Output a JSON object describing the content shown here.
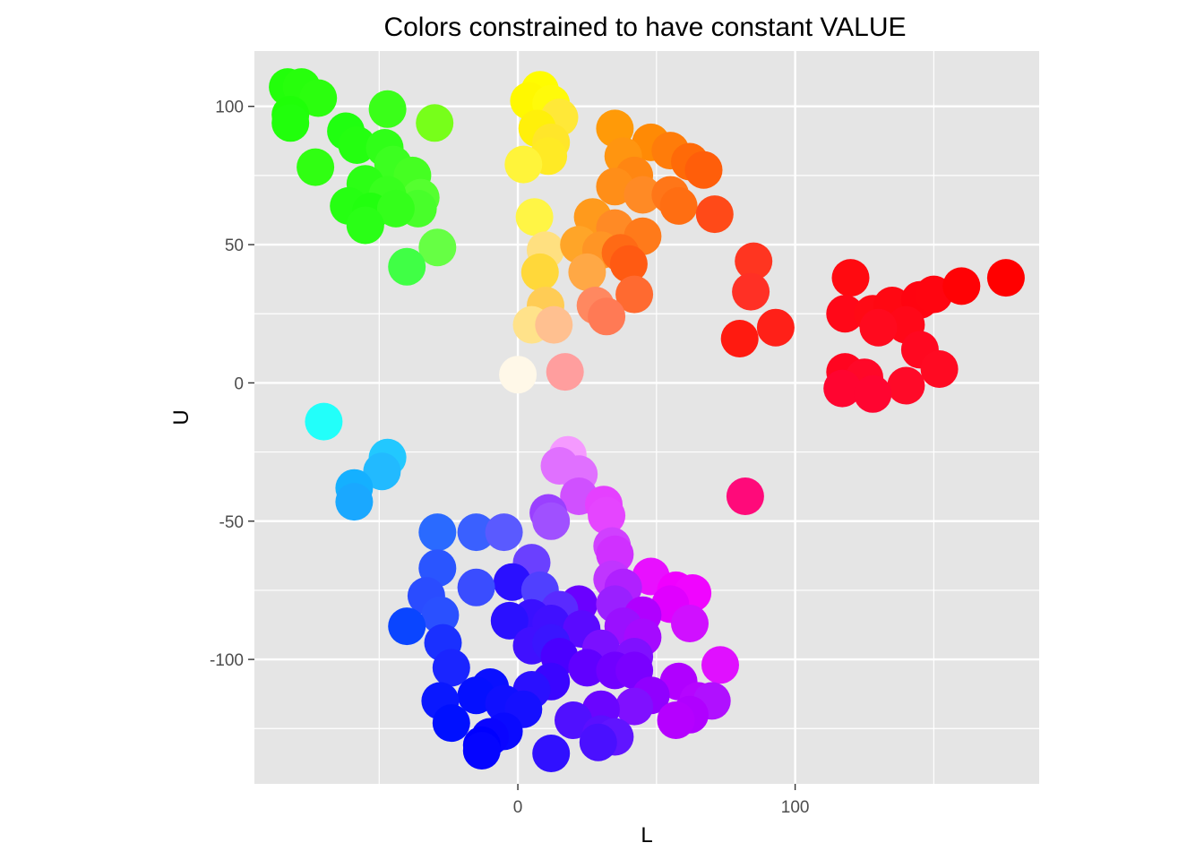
{
  "chart_data": {
    "type": "scatter",
    "title": "Colors constrained to have constant VALUE",
    "xlabel": "L",
    "ylabel": "U",
    "xlim": [
      -95,
      188
    ],
    "ylim": [
      -145,
      120
    ],
    "x_ticks": [
      0,
      100
    ],
    "y_ticks": [
      100,
      50,
      0,
      -50,
      -100
    ],
    "grid": true,
    "legend": "none",
    "panel_color": "#e5e5e5",
    "grid_color": "#ffffff",
    "points": [
      {
        "x": -83,
        "y": 107,
        "color": "#22ff0a"
      },
      {
        "x": -78,
        "y": 107,
        "color": "#27ff0c"
      },
      {
        "x": -72,
        "y": 103,
        "color": "#2bff0e"
      },
      {
        "x": -82,
        "y": 97,
        "color": "#1fff08"
      },
      {
        "x": -82,
        "y": 94,
        "color": "#21ff0c"
      },
      {
        "x": -47,
        "y": 99,
        "color": "#3aff19"
      },
      {
        "x": -30,
        "y": 94,
        "color": "#77ff1a"
      },
      {
        "x": -62,
        "y": 91,
        "color": "#20ff10"
      },
      {
        "x": -58,
        "y": 86,
        "color": "#24ff10"
      },
      {
        "x": -48,
        "y": 85,
        "color": "#30ff18"
      },
      {
        "x": -73,
        "y": 78,
        "color": "#30ff12"
      },
      {
        "x": -45,
        "y": 79,
        "color": "#3cff20"
      },
      {
        "x": -38,
        "y": 75,
        "color": "#45ff22"
      },
      {
        "x": -55,
        "y": 72,
        "color": "#2cff15"
      },
      {
        "x": -35,
        "y": 67,
        "color": "#55ff2f"
      },
      {
        "x": -47,
        "y": 68,
        "color": "#38ff1d"
      },
      {
        "x": -61,
        "y": 64,
        "color": "#26ff12"
      },
      {
        "x": -53,
        "y": 62,
        "color": "#22ff0f"
      },
      {
        "x": -36,
        "y": 63,
        "color": "#48ff2a"
      },
      {
        "x": -44,
        "y": 63,
        "color": "#34ff1b"
      },
      {
        "x": -55,
        "y": 57,
        "color": "#2aff16"
      },
      {
        "x": -29,
        "y": 49,
        "color": "#66ff44"
      },
      {
        "x": -40,
        "y": 42,
        "color": "#40ff45"
      },
      {
        "x": 8,
        "y": 106,
        "color": "#fffc00"
      },
      {
        "x": 4,
        "y": 102,
        "color": "#fff800"
      },
      {
        "x": 12,
        "y": 101,
        "color": "#fffa0a"
      },
      {
        "x": 15,
        "y": 96,
        "color": "#ffe838"
      },
      {
        "x": 7,
        "y": 92,
        "color": "#fff00a"
      },
      {
        "x": 12,
        "y": 87,
        "color": "#ffe62a"
      },
      {
        "x": 11,
        "y": 82,
        "color": "#ffea25"
      },
      {
        "x": 2,
        "y": 79,
        "color": "#fff43a"
      },
      {
        "x": 6,
        "y": 60,
        "color": "#fff545"
      },
      {
        "x": 10,
        "y": 48,
        "color": "#ffe080"
      },
      {
        "x": 8,
        "y": 40,
        "color": "#ffd83a"
      },
      {
        "x": 10,
        "y": 28,
        "color": "#ffcc55"
      },
      {
        "x": 5,
        "y": 21,
        "color": "#ffe28a"
      },
      {
        "x": 13,
        "y": 21,
        "color": "#ffc090"
      },
      {
        "x": 0,
        "y": 3,
        "color": "#fff8e8"
      },
      {
        "x": 17,
        "y": 4,
        "color": "#ff9e9e"
      },
      {
        "x": 35,
        "y": 92,
        "color": "#ff9a08"
      },
      {
        "x": 48,
        "y": 87,
        "color": "#ff8a05"
      },
      {
        "x": 55,
        "y": 84,
        "color": "#ff7c0a"
      },
      {
        "x": 38,
        "y": 82,
        "color": "#ff9510"
      },
      {
        "x": 62,
        "y": 80,
        "color": "#ff6a08"
      },
      {
        "x": 67,
        "y": 77,
        "color": "#ff5e0a"
      },
      {
        "x": 42,
        "y": 75,
        "color": "#ff8612"
      },
      {
        "x": 35,
        "y": 71,
        "color": "#ff8e18"
      },
      {
        "x": 45,
        "y": 68,
        "color": "#ff8a25"
      },
      {
        "x": 55,
        "y": 68,
        "color": "#ff7618"
      },
      {
        "x": 58,
        "y": 64,
        "color": "#ff6e12"
      },
      {
        "x": 71,
        "y": 61,
        "color": "#ff4a18"
      },
      {
        "x": 27,
        "y": 60,
        "color": "#ff9a1c"
      },
      {
        "x": 35,
        "y": 56,
        "color": "#ff8a25"
      },
      {
        "x": 45,
        "y": 53,
        "color": "#ff7a1a"
      },
      {
        "x": 22,
        "y": 50,
        "color": "#ffa528"
      },
      {
        "x": 30,
        "y": 48,
        "color": "#ff9525"
      },
      {
        "x": 37,
        "y": 47,
        "color": "#ff6a15"
      },
      {
        "x": 40,
        "y": 43,
        "color": "#ff5a12"
      },
      {
        "x": 25,
        "y": 40,
        "color": "#ffa845"
      },
      {
        "x": 42,
        "y": 32,
        "color": "#ff6a30"
      },
      {
        "x": 28,
        "y": 28,
        "color": "#ff8860"
      },
      {
        "x": 32,
        "y": 24,
        "color": "#ff7a55"
      },
      {
        "x": 85,
        "y": 44,
        "color": "#ff3520"
      },
      {
        "x": 84,
        "y": 33,
        "color": "#ff3025"
      },
      {
        "x": 80,
        "y": 16,
        "color": "#ff1a10"
      },
      {
        "x": 93,
        "y": 20,
        "color": "#ff2018"
      },
      {
        "x": 120,
        "y": 38,
        "color": "#ff0a10"
      },
      {
        "x": 118,
        "y": 25,
        "color": "#ff0818"
      },
      {
        "x": 128,
        "y": 25,
        "color": "#ff0a15"
      },
      {
        "x": 135,
        "y": 28,
        "color": "#ff0812"
      },
      {
        "x": 145,
        "y": 30,
        "color": "#ff0410"
      },
      {
        "x": 150,
        "y": 32,
        "color": "#ff0510"
      },
      {
        "x": 160,
        "y": 35,
        "color": "#ff0205"
      },
      {
        "x": 176,
        "y": 38,
        "color": "#ff0000"
      },
      {
        "x": 140,
        "y": 21,
        "color": "#ff0818"
      },
      {
        "x": 130,
        "y": 20,
        "color": "#ff0a1e"
      },
      {
        "x": 145,
        "y": 12,
        "color": "#ff0820"
      },
      {
        "x": 152,
        "y": 5,
        "color": "#ff0a22"
      },
      {
        "x": 118,
        "y": 4,
        "color": "#ff0520"
      },
      {
        "x": 125,
        "y": 2,
        "color": "#ff0828"
      },
      {
        "x": 140,
        "y": -1,
        "color": "#ff0a28"
      },
      {
        "x": 117,
        "y": -2,
        "color": "#ff0530"
      },
      {
        "x": 128,
        "y": -4,
        "color": "#ff0530"
      },
      {
        "x": 82,
        "y": -41,
        "color": "#ff0a7a"
      },
      {
        "x": -70,
        "y": -14,
        "color": "#22fffa"
      },
      {
        "x": -47,
        "y": -27,
        "color": "#22c8ff"
      },
      {
        "x": -49,
        "y": -32,
        "color": "#22baff"
      },
      {
        "x": -59,
        "y": -38,
        "color": "#15b0ff"
      },
      {
        "x": -59,
        "y": -43,
        "color": "#1aa8ff"
      },
      {
        "x": 18,
        "y": -26,
        "color": "#f59aff"
      },
      {
        "x": 15,
        "y": -30,
        "color": "#e070ff"
      },
      {
        "x": 22,
        "y": -33,
        "color": "#e070ff"
      },
      {
        "x": 22,
        "y": -41,
        "color": "#d050ff"
      },
      {
        "x": 31,
        "y": -44,
        "color": "#e540ff"
      },
      {
        "x": 32,
        "y": -48,
        "color": "#e545ff"
      },
      {
        "x": 11,
        "y": -47,
        "color": "#9a40ff"
      },
      {
        "x": 12,
        "y": -50,
        "color": "#a050ff"
      },
      {
        "x": -29,
        "y": -54,
        "color": "#2a6aff"
      },
      {
        "x": -15,
        "y": -54,
        "color": "#3a60ff"
      },
      {
        "x": -5,
        "y": -54,
        "color": "#5a5aff"
      },
      {
        "x": 34,
        "y": -59,
        "color": "#d040ff"
      },
      {
        "x": 35,
        "y": -62,
        "color": "#d030ff"
      },
      {
        "x": 5,
        "y": -65,
        "color": "#6a40ff"
      },
      {
        "x": -29,
        "y": -67,
        "color": "#2a55ff"
      },
      {
        "x": 48,
        "y": -70,
        "color": "#e810ff"
      },
      {
        "x": 34,
        "y": -71,
        "color": "#c035ff"
      },
      {
        "x": -2,
        "y": -72,
        "color": "#2a10ff"
      },
      {
        "x": -15,
        "y": -74,
        "color": "#3a4dff"
      },
      {
        "x": 8,
        "y": -75,
        "color": "#5040ff"
      },
      {
        "x": 38,
        "y": -74,
        "color": "#b020ff"
      },
      {
        "x": 57,
        "y": -75,
        "color": "#f000ff"
      },
      {
        "x": 63,
        "y": -76,
        "color": "#f005ff"
      },
      {
        "x": -33,
        "y": -77,
        "color": "#2a4cff"
      },
      {
        "x": 55,
        "y": -80,
        "color": "#e000ff"
      },
      {
        "x": 22,
        "y": -80,
        "color": "#6a00ff"
      },
      {
        "x": 35,
        "y": -80,
        "color": "#9a20ff"
      },
      {
        "x": 15,
        "y": -82,
        "color": "#5a2aff"
      },
      {
        "x": -28,
        "y": -84,
        "color": "#2a50ff"
      },
      {
        "x": 5,
        "y": -85,
        "color": "#3a10ff"
      },
      {
        "x": -3,
        "y": -86,
        "color": "#2a10ff"
      },
      {
        "x": 45,
        "y": -84,
        "color": "#b000ff"
      },
      {
        "x": 62,
        "y": -87,
        "color": "#d010ff"
      },
      {
        "x": 12,
        "y": -87,
        "color": "#4010ff"
      },
      {
        "x": 38,
        "y": -88,
        "color": "#9a10ff"
      },
      {
        "x": -40,
        "y": -88,
        "color": "#0a45ff"
      },
      {
        "x": 23,
        "y": -89,
        "color": "#5a0aff"
      },
      {
        "x": 45,
        "y": -92,
        "color": "#a50aff"
      },
      {
        "x": 5,
        "y": -95,
        "color": "#4010ff"
      },
      {
        "x": -27,
        "y": -94,
        "color": "#1a30ff"
      },
      {
        "x": 12,
        "y": -94,
        "color": "#3a15ff"
      },
      {
        "x": 30,
        "y": -96,
        "color": "#7a10ff"
      },
      {
        "x": 42,
        "y": -99,
        "color": "#8010ff"
      },
      {
        "x": 15,
        "y": -99,
        "color": "#4a00ff"
      },
      {
        "x": 73,
        "y": -102,
        "color": "#e010ff"
      },
      {
        "x": -24,
        "y": -103,
        "color": "#1a25ff"
      },
      {
        "x": 25,
        "y": -103,
        "color": "#6000ff"
      },
      {
        "x": 35,
        "y": -104,
        "color": "#7000ff"
      },
      {
        "x": 42,
        "y": -104,
        "color": "#7a00ff"
      },
      {
        "x": 58,
        "y": -108,
        "color": "#b000ff"
      },
      {
        "x": 12,
        "y": -108,
        "color": "#3a05ff"
      },
      {
        "x": -10,
        "y": -110,
        "color": "#0a10ff"
      },
      {
        "x": 5,
        "y": -111,
        "color": "#2a10ff"
      },
      {
        "x": -15,
        "y": -113,
        "color": "#0510ff"
      },
      {
        "x": 48,
        "y": -113,
        "color": "#9000ff"
      },
      {
        "x": 65,
        "y": -115,
        "color": "#b505ff"
      },
      {
        "x": 70,
        "y": -115,
        "color": "#b010ff"
      },
      {
        "x": -28,
        "y": -115,
        "color": "#0a18ff"
      },
      {
        "x": -5,
        "y": -116,
        "color": "#1010ff"
      },
      {
        "x": 2,
        "y": -118,
        "color": "#1510ff"
      },
      {
        "x": 42,
        "y": -117,
        "color": "#8010ff"
      },
      {
        "x": 30,
        "y": -118,
        "color": "#6a05ff"
      },
      {
        "x": 62,
        "y": -120,
        "color": "#b000ff"
      },
      {
        "x": 57,
        "y": -122,
        "color": "#b500ff"
      },
      {
        "x": 20,
        "y": -122,
        "color": "#5010ff"
      },
      {
        "x": -24,
        "y": -123,
        "color": "#0010ff"
      },
      {
        "x": -5,
        "y": -126,
        "color": "#0a0aff"
      },
      {
        "x": 30,
        "y": -127,
        "color": "#5a10ff"
      },
      {
        "x": -10,
        "y": -128,
        "color": "#0a05ff"
      },
      {
        "x": 35,
        "y": -128,
        "color": "#6015ff"
      },
      {
        "x": -13,
        "y": -131,
        "color": "#0000ff"
      },
      {
        "x": 29,
        "y": -130,
        "color": "#4a10ff"
      },
      {
        "x": -13,
        "y": -133,
        "color": "#0505ff"
      },
      {
        "x": 12,
        "y": -134,
        "color": "#3010ff"
      }
    ]
  }
}
